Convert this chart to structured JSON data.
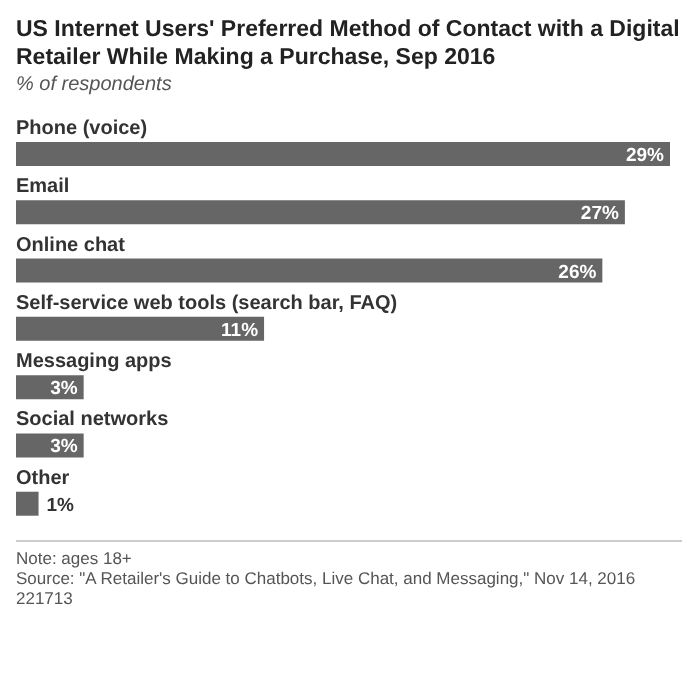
{
  "chart_data": {
    "type": "bar",
    "orientation": "horizontal",
    "title": "US Internet Users' Preferred Method of Contact with a Digital Retailer While Making a Purchase, Sep 2016",
    "subtitle": "% of respondents",
    "categories": [
      "Phone (voice)",
      "Email",
      "Online chat",
      "Self-service web tools (search bar, FAQ)",
      "Messaging apps",
      "Social networks",
      "Other"
    ],
    "values": [
      29,
      27,
      26,
      11,
      3,
      3,
      1
    ],
    "value_labels": [
      "29%",
      "27%",
      "26%",
      "11%",
      "3%",
      "3%",
      "1%"
    ],
    "color": "#666666",
    "annotations": [
      "Note: ages 18+",
      "Source: \"A Retailer's Guide to Chatbots, Live Chat, and Messaging,\" Nov 14, 2016",
      "221713"
    ]
  }
}
